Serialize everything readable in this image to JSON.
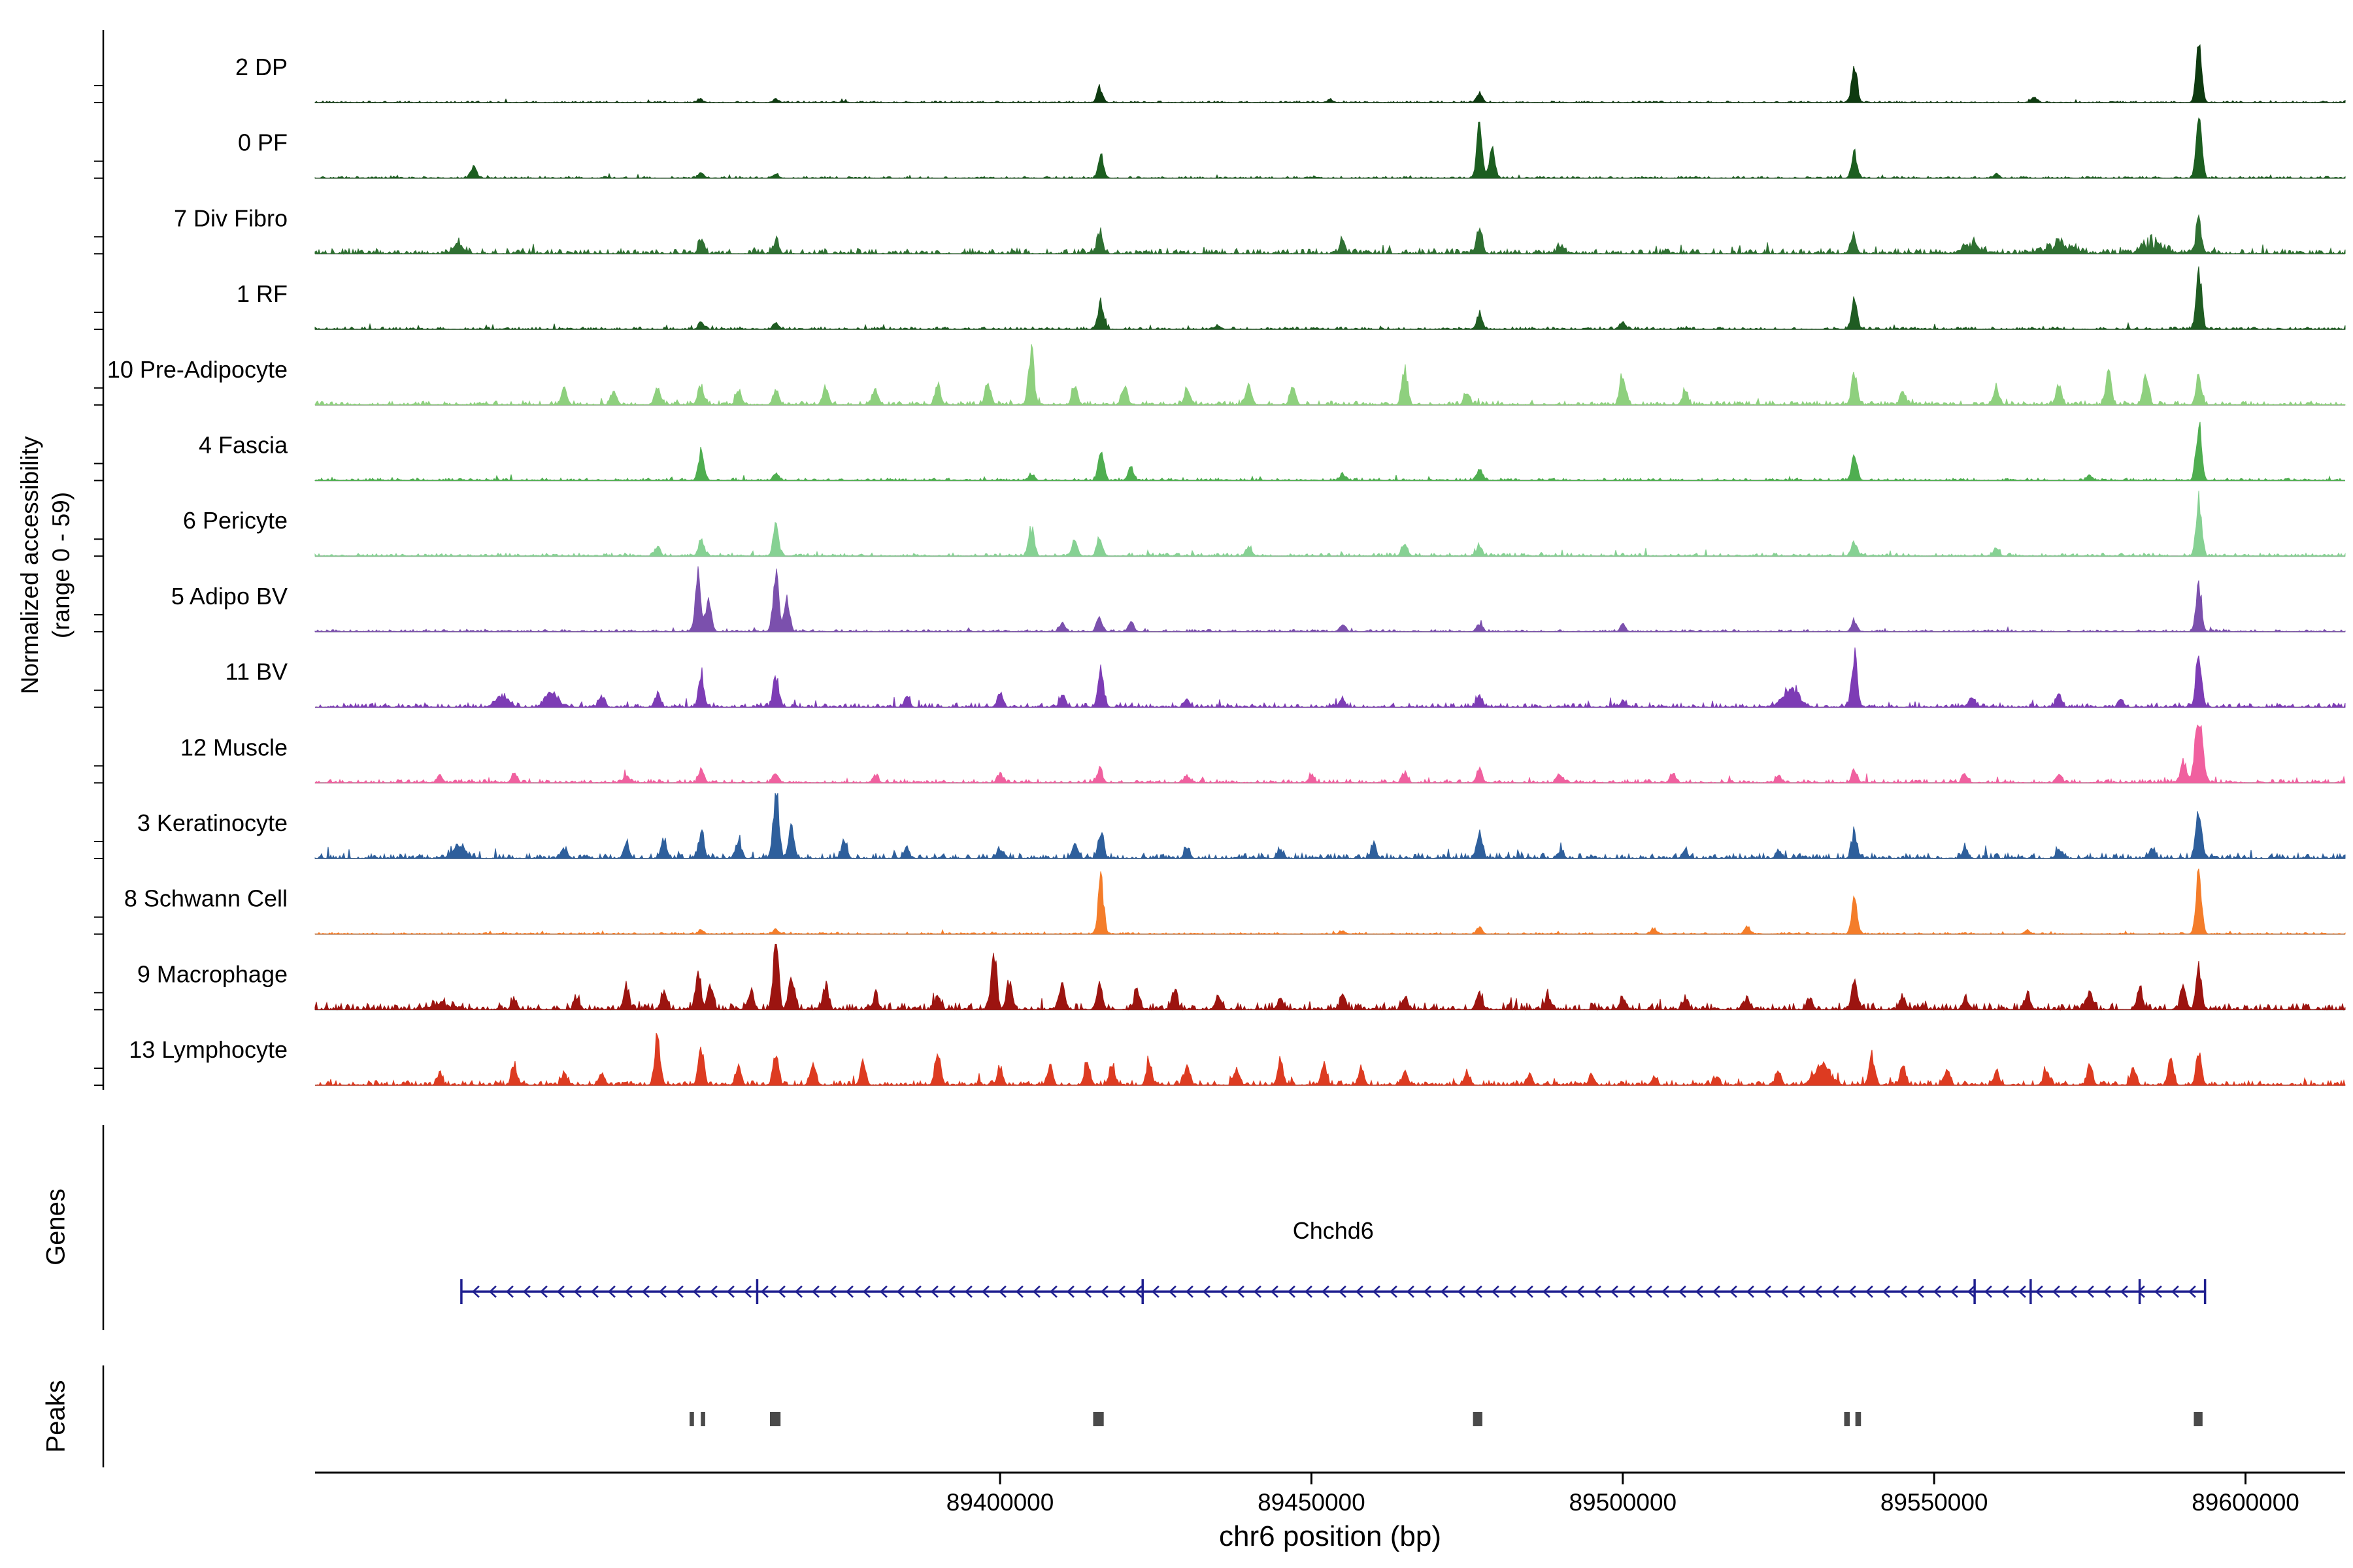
{
  "figure": {
    "y_axis_label_line1": "Normalized accessibility",
    "y_axis_label_line2": "(range 0 - 59)",
    "x_axis_label": "chr6 position (bp)",
    "genes_section_label": "Genes",
    "peaks_section_label": "Peaks"
  },
  "chart_data": {
    "type": "area",
    "title": "",
    "xlabel": "chr6 position (bp)",
    "ylabel": "Normalized accessibility (range 0 - 59)",
    "xlim": [
      89290000,
      89616000
    ],
    "x_ticks": [
      89400000,
      89450000,
      89500000,
      89550000,
      89600000
    ],
    "track_value_range": [
      0,
      59
    ],
    "tracks": [
      {
        "label": "2 DP",
        "color": "#0e3a10",
        "noise": 0.018,
        "peaks": [
          [
            89351800,
            0.06
          ],
          [
            89364000,
            0.05
          ],
          [
            89416000,
            0.22
          ],
          [
            89453000,
            0.05
          ],
          [
            89477000,
            0.14
          ],
          [
            89537200,
            0.55
          ],
          [
            89566000,
            0.08
          ],
          [
            89592500,
            0.85
          ]
        ]
      },
      {
        "label": "0 PF",
        "color": "#1c5e20",
        "noise": 0.022,
        "peaks": [
          [
            89315500,
            0.18
          ],
          [
            89352000,
            0.08
          ],
          [
            89364000,
            0.06
          ],
          [
            89416200,
            0.32
          ],
          [
            89477000,
            0.78
          ],
          [
            89479000,
            0.45
          ],
          [
            89537200,
            0.38
          ],
          [
            89560000,
            0.06
          ],
          [
            89592500,
            0.95
          ]
        ]
      },
      {
        "label": "7 Div Fibro",
        "color": "#2f7032",
        "noise": 0.06,
        "peaks": [
          [
            89313000,
            0.16,
            1500
          ],
          [
            89352000,
            0.2
          ],
          [
            89364000,
            0.18
          ],
          [
            89416000,
            0.35
          ],
          [
            89455000,
            0.15
          ],
          [
            89477000,
            0.42
          ],
          [
            89490000,
            0.12
          ],
          [
            89537000,
            0.28
          ],
          [
            89556000,
            0.16,
            3000
          ],
          [
            89570000,
            0.18,
            4000
          ],
          [
            89585000,
            0.22,
            3000
          ],
          [
            89592500,
            0.5
          ]
        ]
      },
      {
        "label": "1 RF",
        "color": "#1f5c22",
        "noise": 0.028,
        "peaks": [
          [
            89352000,
            0.1
          ],
          [
            89364000,
            0.08
          ],
          [
            89416200,
            0.42
          ],
          [
            89435000,
            0.06
          ],
          [
            89477000,
            0.25
          ],
          [
            89500000,
            0.1
          ],
          [
            89537200,
            0.45
          ],
          [
            89592500,
            0.92
          ]
        ]
      },
      {
        "label": "10 Pre-Adipocyte",
        "color": "#8ed07e",
        "noise": 0.045,
        "peaks": [
          [
            89330000,
            0.25
          ],
          [
            89338000,
            0.2
          ],
          [
            89345000,
            0.28
          ],
          [
            89352000,
            0.3
          ],
          [
            89358000,
            0.22
          ],
          [
            89364000,
            0.25
          ],
          [
            89372000,
            0.28
          ],
          [
            89380000,
            0.25
          ],
          [
            89390000,
            0.3
          ],
          [
            89398000,
            0.3
          ],
          [
            89405000,
            0.85
          ],
          [
            89412000,
            0.3
          ],
          [
            89420000,
            0.28
          ],
          [
            89430000,
            0.25
          ],
          [
            89440000,
            0.3
          ],
          [
            89447000,
            0.28
          ],
          [
            89465000,
            0.55
          ],
          [
            89475000,
            0.2
          ],
          [
            89500000,
            0.48
          ],
          [
            89510000,
            0.2
          ],
          [
            89537200,
            0.5
          ],
          [
            89545000,
            0.2
          ],
          [
            89560000,
            0.25
          ],
          [
            89570000,
            0.3
          ],
          [
            89578000,
            0.55
          ],
          [
            89584000,
            0.45
          ],
          [
            89592500,
            0.45
          ]
        ]
      },
      {
        "label": "4 Fascia",
        "color": "#4fae50",
        "noise": 0.028,
        "peaks": [
          [
            89352000,
            0.45
          ],
          [
            89364000,
            0.12
          ],
          [
            89405000,
            0.1
          ],
          [
            89416200,
            0.5
          ],
          [
            89421000,
            0.2
          ],
          [
            89455000,
            0.1
          ],
          [
            89477000,
            0.18
          ],
          [
            89537200,
            0.38
          ],
          [
            89575000,
            0.08
          ],
          [
            89592500,
            0.88
          ]
        ]
      },
      {
        "label": "6 Pericyte",
        "color": "#86d193",
        "noise": 0.035,
        "peaks": [
          [
            89345000,
            0.15
          ],
          [
            89352000,
            0.25
          ],
          [
            89364000,
            0.5
          ],
          [
            89405000,
            0.42
          ],
          [
            89412000,
            0.25
          ],
          [
            89416000,
            0.3
          ],
          [
            89440000,
            0.15
          ],
          [
            89465000,
            0.2
          ],
          [
            89477000,
            0.15
          ],
          [
            89537200,
            0.22
          ],
          [
            89560000,
            0.12
          ],
          [
            89592500,
            0.85
          ]
        ]
      },
      {
        "label": "5 Adipo BV",
        "color": "#7b50ad",
        "noise": 0.025,
        "peaks": [
          [
            89351500,
            0.88
          ],
          [
            89353200,
            0.45
          ],
          [
            89364000,
            0.92
          ],
          [
            89365800,
            0.5
          ],
          [
            89410000,
            0.15
          ],
          [
            89416000,
            0.22
          ],
          [
            89421000,
            0.15
          ],
          [
            89455000,
            0.1
          ],
          [
            89477000,
            0.12
          ],
          [
            89500000,
            0.08
          ],
          [
            89537200,
            0.15
          ],
          [
            89592500,
            0.7
          ]
        ]
      },
      {
        "label": "11 BV",
        "color": "#7d3cb5",
        "noise": 0.05,
        "peaks": [
          [
            89320000,
            0.18,
            2000
          ],
          [
            89328000,
            0.22,
            2000
          ],
          [
            89336000,
            0.18
          ],
          [
            89345000,
            0.2
          ],
          [
            89352000,
            0.5
          ],
          [
            89364000,
            0.45
          ],
          [
            89385000,
            0.15
          ],
          [
            89400000,
            0.22
          ],
          [
            89410000,
            0.2
          ],
          [
            89416200,
            0.55
          ],
          [
            89430000,
            0.12
          ],
          [
            89455000,
            0.12
          ],
          [
            89477000,
            0.18
          ],
          [
            89500000,
            0.1
          ],
          [
            89527000,
            0.28,
            2500
          ],
          [
            89537200,
            0.8
          ],
          [
            89556000,
            0.15
          ],
          [
            89570000,
            0.18
          ],
          [
            89580000,
            0.12
          ],
          [
            89592500,
            0.85
          ]
        ]
      },
      {
        "label": "12 Muscle",
        "color": "#f0609f",
        "noise": 0.04,
        "peaks": [
          [
            89310000,
            0.12
          ],
          [
            89322000,
            0.15
          ],
          [
            89340000,
            0.12
          ],
          [
            89352000,
            0.2
          ],
          [
            89364000,
            0.15
          ],
          [
            89380000,
            0.1
          ],
          [
            89400000,
            0.12
          ],
          [
            89416000,
            0.2
          ],
          [
            89430000,
            0.1
          ],
          [
            89450000,
            0.12
          ],
          [
            89465000,
            0.15
          ],
          [
            89477000,
            0.2
          ],
          [
            89490000,
            0.12
          ],
          [
            89508000,
            0.15
          ],
          [
            89525000,
            0.1
          ],
          [
            89537200,
            0.2
          ],
          [
            89555000,
            0.12
          ],
          [
            89570000,
            0.12
          ],
          [
            89590000,
            0.35
          ],
          [
            89592500,
            1.0,
            1200
          ]
        ]
      },
      {
        "label": "3 Keratinocyte",
        "color": "#2e5f9c",
        "noise": 0.06,
        "peaks": [
          [
            89313000,
            0.2,
            2000
          ],
          [
            89330000,
            0.15
          ],
          [
            89340000,
            0.25
          ],
          [
            89346000,
            0.3
          ],
          [
            89352000,
            0.38
          ],
          [
            89358000,
            0.25
          ],
          [
            89364000,
            1.0,
            900
          ],
          [
            89366500,
            0.5
          ],
          [
            89375000,
            0.28
          ],
          [
            89385000,
            0.15
          ],
          [
            89400000,
            0.15
          ],
          [
            89412000,
            0.2
          ],
          [
            89416200,
            0.42
          ],
          [
            89430000,
            0.15
          ],
          [
            89445000,
            0.12
          ],
          [
            89460000,
            0.2
          ],
          [
            89477000,
            0.38
          ],
          [
            89490000,
            0.12
          ],
          [
            89510000,
            0.12
          ],
          [
            89525000,
            0.12
          ],
          [
            89537200,
            0.38
          ],
          [
            89555000,
            0.15
          ],
          [
            89570000,
            0.12
          ],
          [
            89585000,
            0.15
          ],
          [
            89592500,
            0.82
          ]
        ]
      },
      {
        "label": "8 Schwann Cell",
        "color": "#f47d2a",
        "noise": 0.018,
        "peaks": [
          [
            89352000,
            0.06
          ],
          [
            89364000,
            0.06
          ],
          [
            89416200,
            0.82
          ],
          [
            89455000,
            0.05
          ],
          [
            89477000,
            0.1
          ],
          [
            89505000,
            0.08
          ],
          [
            89520000,
            0.12
          ],
          [
            89537200,
            0.5
          ],
          [
            89565000,
            0.06
          ],
          [
            89592500,
            0.92
          ]
        ]
      },
      {
        "label": "9 Macrophage",
        "color": "#9c1410",
        "noise": 0.08,
        "peaks": [
          [
            89310000,
            0.12,
            3000
          ],
          [
            89322000,
            0.15
          ],
          [
            89332000,
            0.18
          ],
          [
            89340000,
            0.35
          ],
          [
            89346000,
            0.3
          ],
          [
            89351500,
            0.55
          ],
          [
            89353500,
            0.4
          ],
          [
            89360000,
            0.3
          ],
          [
            89364000,
            0.95,
            800
          ],
          [
            89366500,
            0.5
          ],
          [
            89372000,
            0.35
          ],
          [
            89380000,
            0.2
          ],
          [
            89390000,
            0.2
          ],
          [
            89399000,
            0.88,
            800
          ],
          [
            89401500,
            0.4
          ],
          [
            89410000,
            0.42
          ],
          [
            89416000,
            0.35
          ],
          [
            89422000,
            0.3
          ],
          [
            89428000,
            0.28
          ],
          [
            89435000,
            0.22
          ],
          [
            89445000,
            0.18
          ],
          [
            89455000,
            0.2
          ],
          [
            89465000,
            0.18
          ],
          [
            89477000,
            0.25
          ],
          [
            89488000,
            0.2
          ],
          [
            89500000,
            0.18
          ],
          [
            89510000,
            0.15
          ],
          [
            89520000,
            0.15
          ],
          [
            89530000,
            0.18
          ],
          [
            89537200,
            0.45
          ],
          [
            89545000,
            0.2
          ],
          [
            89555000,
            0.18
          ],
          [
            89565000,
            0.2
          ],
          [
            89575000,
            0.25
          ],
          [
            89583000,
            0.3
          ],
          [
            89590000,
            0.35
          ],
          [
            89592500,
            0.6
          ]
        ]
      },
      {
        "label": "13 Lymphocyte",
        "color": "#dd3b21",
        "noise": 0.055,
        "peaks": [
          [
            89310000,
            0.15
          ],
          [
            89322000,
            0.3
          ],
          [
            89330000,
            0.2
          ],
          [
            89336000,
            0.18
          ],
          [
            89345000,
            0.75,
            700
          ],
          [
            89352000,
            0.55
          ],
          [
            89358000,
            0.3
          ],
          [
            89364000,
            0.45
          ],
          [
            89370000,
            0.3
          ],
          [
            89378000,
            0.35
          ],
          [
            89390000,
            0.5
          ],
          [
            89400000,
            0.25
          ],
          [
            89408000,
            0.3
          ],
          [
            89414000,
            0.35
          ],
          [
            89418000,
            0.3
          ],
          [
            89424000,
            0.32
          ],
          [
            89430000,
            0.28
          ],
          [
            89438000,
            0.25
          ],
          [
            89445000,
            0.35
          ],
          [
            89452000,
            0.3
          ],
          [
            89458000,
            0.28
          ],
          [
            89465000,
            0.2
          ],
          [
            89475000,
            0.18
          ],
          [
            89485000,
            0.15
          ],
          [
            89495000,
            0.15
          ],
          [
            89505000,
            0.12
          ],
          [
            89515000,
            0.12
          ],
          [
            89525000,
            0.2
          ],
          [
            89532000,
            0.3,
            2500
          ],
          [
            89540000,
            0.45
          ],
          [
            89545000,
            0.3
          ],
          [
            89552000,
            0.25
          ],
          [
            89560000,
            0.2
          ],
          [
            89568000,
            0.25
          ],
          [
            89575000,
            0.3
          ],
          [
            89582000,
            0.25
          ],
          [
            89588000,
            0.4
          ],
          [
            89592500,
            0.5
          ]
        ]
      }
    ],
    "gene_track": {
      "label": "Genes",
      "genes": [
        {
          "name": "Chchd6",
          "start": 89313500,
          "end": 89593500,
          "strand": "-",
          "color": "#1f1f8f",
          "exon_ticks": [
            89313500,
            89361000,
            89422900,
            89556500,
            89565500,
            89583000,
            89593500
          ]
        }
      ]
    },
    "peaks_track": {
      "label": "Peaks",
      "color": "#4a4a4a",
      "intervals": [
        [
          89350150,
          89350850
        ],
        [
          89351950,
          89352650
        ],
        [
          89363050,
          89364750
        ],
        [
          89414950,
          89416650
        ],
        [
          89475950,
          89477450
        ],
        [
          89535550,
          89536450
        ],
        [
          89537350,
          89538250
        ],
        [
          89591700,
          89593100
        ]
      ]
    }
  }
}
